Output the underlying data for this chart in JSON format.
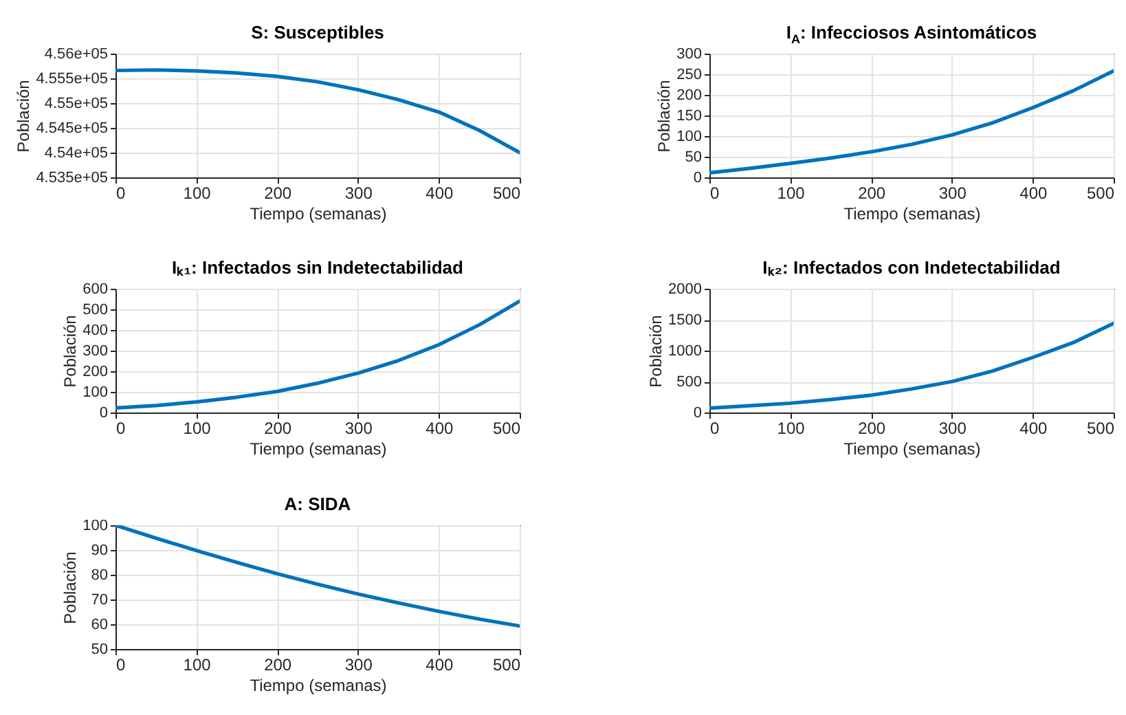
{
  "chart_data": [
    {
      "type": "line",
      "title": "S: Susceptibles",
      "xlabel": "Tiempo (semanas)",
      "ylabel": "Población",
      "x": [
        0,
        50,
        100,
        150,
        200,
        250,
        300,
        350,
        400,
        450,
        500
      ],
      "series": [
        {
          "color": "#0072bd",
          "values": [
            455660,
            455670,
            455650,
            455610,
            455540,
            455430,
            455270,
            455070,
            454820,
            454450,
            454000
          ]
        }
      ],
      "xlim": [
        0,
        500
      ],
      "xticks": [
        0,
        100,
        200,
        300,
        400,
        500
      ],
      "ylim": [
        453500,
        456000
      ],
      "yticks": [
        {
          "value": 453500,
          "label": "4.535e+05"
        },
        {
          "value": 454000,
          "label": "4.54e+05"
        },
        {
          "value": 454500,
          "label": "4.545e+05"
        },
        {
          "value": 455000,
          "label": "4.55e+05"
        },
        {
          "value": 455500,
          "label": "4.555e+05"
        },
        {
          "value": 456000,
          "label": "4.56e+05"
        }
      ],
      "grid": true
    },
    {
      "type": "line",
      "title": "I$_{A}$: Infecciosos Asintomáticos",
      "xlabel": "Tiempo (semanas)",
      "ylabel": "Población",
      "x": [
        0,
        50,
        100,
        150,
        200,
        250,
        300,
        350,
        400,
        450,
        500
      ],
      "series": [
        {
          "color": "#0072bd",
          "values": [
            11,
            22,
            34,
            47,
            62,
            80,
            103,
            132,
            169,
            210,
            258
          ]
        }
      ],
      "xlim": [
        0,
        500
      ],
      "xticks": [
        0,
        100,
        200,
        300,
        400,
        500
      ],
      "ylim": [
        0,
        300
      ],
      "yticks": [
        0,
        50,
        100,
        150,
        200,
        250,
        300
      ],
      "grid": true
    },
    {
      "type": "line",
      "title": "Iₖ₁: Infectados sin Indetectabilidad",
      "xlabel": "Tiempo (semanas)",
      "ylabel": "Población",
      "x": [
        0,
        50,
        100,
        150,
        200,
        250,
        300,
        350,
        400,
        450,
        500
      ],
      "series": [
        {
          "color": "#0072bd",
          "values": [
            22,
            34,
            51,
            74,
            102,
            142,
            191,
            252,
            329,
            425,
            540
          ]
        }
      ],
      "xlim": [
        0,
        500
      ],
      "xticks": [
        0,
        100,
        200,
        300,
        400,
        500
      ],
      "ylim": [
        0,
        600
      ],
      "yticks": [
        0,
        100,
        200,
        300,
        400,
        500,
        600
      ],
      "grid": true
    },
    {
      "type": "line",
      "title": "Iₖ₂: Infectados con Indetectabilidad",
      "xlabel": "Tiempo (semanas)",
      "ylabel": "Población",
      "x": [
        0,
        50,
        100,
        150,
        200,
        250,
        300,
        350,
        400,
        450,
        500
      ],
      "series": [
        {
          "color": "#0072bd",
          "values": [
            70,
            110,
            150,
            210,
            280,
            380,
            500,
            670,
            890,
            1130,
            1440
          ]
        }
      ],
      "xlim": [
        0,
        500
      ],
      "xticks": [
        0,
        100,
        200,
        300,
        400,
        500
      ],
      "ylim": [
        0,
        2000
      ],
      "yticks": [
        0,
        500,
        1000,
        1500,
        2000
      ],
      "grid": true
    },
    {
      "type": "line",
      "title": "A: SIDA",
      "xlabel": "Tiempo (semanas)",
      "ylabel": "Población",
      "x": [
        0,
        50,
        100,
        150,
        200,
        250,
        300,
        350,
        400,
        450,
        500
      ],
      "series": [
        {
          "color": "#0072bd",
          "values": [
            100,
            94.8,
            89.8,
            85,
            80.4,
            76.2,
            72.2,
            68.6,
            65.2,
            62.1,
            59.3
          ]
        }
      ],
      "xlim": [
        0,
        500
      ],
      "xticks": [
        0,
        100,
        200,
        300,
        400,
        500
      ],
      "ylim": [
        50,
        100
      ],
      "yticks": [
        50,
        60,
        70,
        80,
        90,
        100
      ],
      "grid": true
    }
  ]
}
